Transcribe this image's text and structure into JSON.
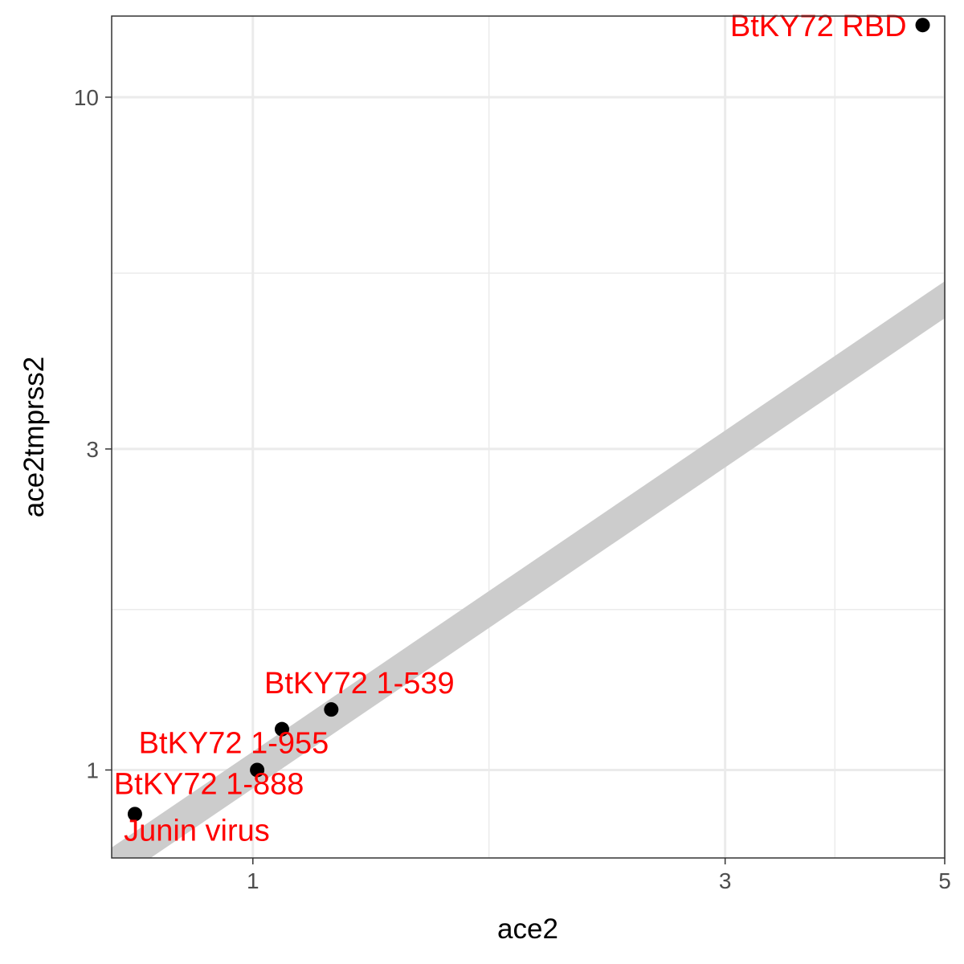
{
  "chart_data": {
    "type": "scatter",
    "xlabel": "ace2",
    "ylabel": "ace2tmprss2",
    "x_scale": "log",
    "y_scale": "log",
    "xlim": [
      0.72,
      5
    ],
    "ylim": [
      0.74,
      13.2
    ],
    "x_ticks": [
      {
        "value": 1,
        "label": "1"
      },
      {
        "value": 3,
        "label": "3"
      },
      {
        "value": 5,
        "label": "5"
      }
    ],
    "x_minor": [
      1.732,
      3.873
    ],
    "y_ticks": [
      {
        "value": 1,
        "label": "1"
      },
      {
        "value": 3,
        "label": "3"
      },
      {
        "value": 10,
        "label": "10"
      }
    ],
    "y_minor": [
      1.732,
      5.477
    ],
    "grid": true,
    "reference_line": {
      "slope": 1,
      "intercept": 0,
      "color": "#cccccc"
    },
    "points": [
      {
        "label": "BtKY72 RBD",
        "x": 4.75,
        "y": 12.8,
        "label_anchor": "left"
      },
      {
        "label": "BtKY72 1-539",
        "x": 1.2,
        "y": 1.23,
        "label_anchor": "above"
      },
      {
        "label": "BtKY72 1-955",
        "x": 1.07,
        "y": 1.15,
        "label_anchor": "below-left"
      },
      {
        "label": "BtKY72 1-888",
        "x": 1.01,
        "y": 1.0,
        "label_anchor": "below-left"
      },
      {
        "label": "Junin virus",
        "x": 0.76,
        "y": 0.86,
        "label_anchor": "below"
      }
    ],
    "colors": {
      "point": "#000000",
      "label": "#ff0000",
      "grid": "#ebebeb",
      "panel_border": "#333333"
    }
  }
}
